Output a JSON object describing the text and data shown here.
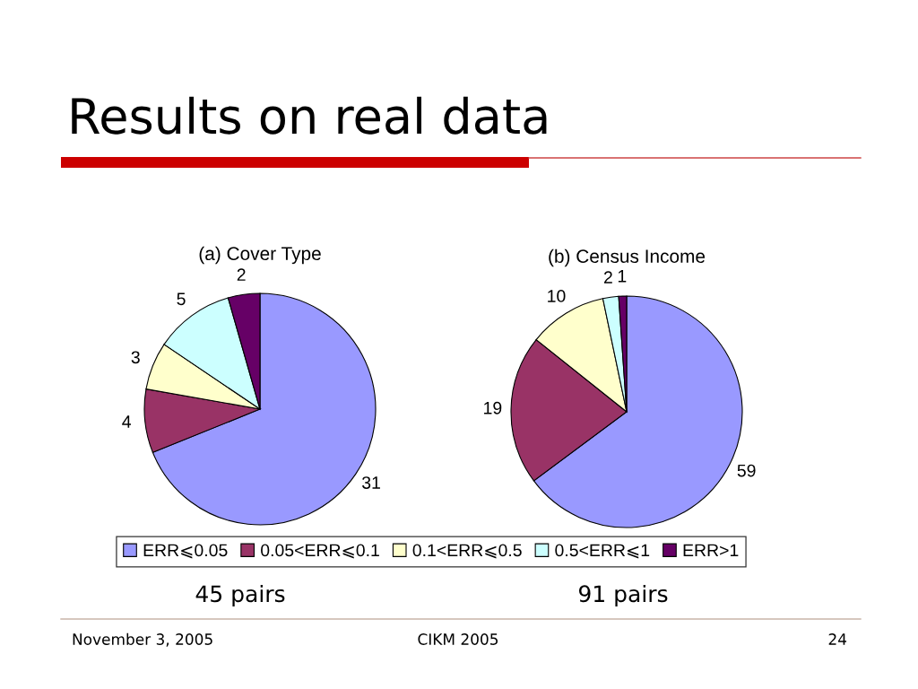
{
  "chart_data": [
    {
      "type": "pie",
      "title": "(a) Cover Type",
      "categories": [
        "ERR⩽0.05",
        "0.05<ERR⩽0.1",
        "0.1<ERR⩽0.5",
        "0.5<ERR⩽1",
        "ERR>1"
      ],
      "values": [
        31,
        4,
        3,
        5,
        2
      ],
      "colors": [
        "#9999ff",
        "#993366",
        "#ffffcc",
        "#ccffff",
        "#660066"
      ],
      "data_labels": true,
      "legend": "bottom",
      "annotations": [
        "Results on real data",
        "45 pairs",
        "November 3, 2005",
        "CIKM 2005",
        "24"
      ]
    },
    {
      "type": "pie",
      "title": "(b) Census Income",
      "categories": [
        null,
        null,
        null,
        null,
        null
      ],
      "values": [
        59,
        19,
        10,
        2,
        1
      ],
      "colors": [
        "#9999ff",
        "#993366",
        "#ffffcc",
        "#ccffff",
        "#660066"
      ],
      "data_labels": true,
      "annotations": [
        "91 pairs"
      ]
    }
  ]
}
